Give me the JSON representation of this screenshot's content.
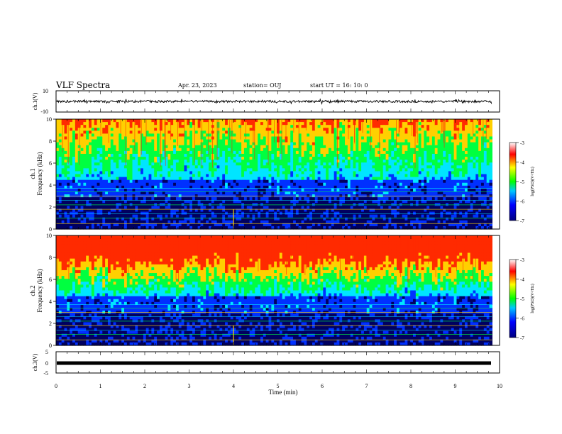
{
  "header": {
    "title": "VLF Spectra",
    "date": "Apr. 23, 2023",
    "station": "station= OUJ",
    "start": "start  UT  =    16: 10: 0"
  },
  "panels": {
    "ch1_wave": {
      "label": "ch.1(V)",
      "ticks": [
        "10",
        "-10"
      ]
    },
    "ch1_spec": {
      "label_line1": "ch.1",
      "label_line2": "Frequency  (kHz)"
    },
    "ch2_spec": {
      "label_line1": "ch.2",
      "label_line2": "Frequency  (kHz)"
    },
    "ch3_wave": {
      "label": "ch.3(V)",
      "ticks": [
        "5",
        "0",
        "-5"
      ]
    }
  },
  "colorbar": {
    "label": "log(PSD)(V²/Hz)",
    "ticks": [
      "-3",
      "-4",
      "-5",
      "-6",
      "-7"
    ]
  },
  "chart_data": [
    {
      "type": "line",
      "title": "VLF Spectra",
      "ylabel": "ch.1(V)",
      "ylim": [
        -10,
        10
      ],
      "xlim": [
        0,
        10
      ],
      "description_values": {
        "x": [
          0,
          9.83
        ],
        "y": [
          0,
          0
        ]
      }
    },
    {
      "type": "heatmap",
      "ylabel": "ch.1 Frequency (kHz)",
      "xlim": [
        0,
        10
      ],
      "ylim": [
        0,
        10
      ],
      "yticks": [
        "0",
        "2",
        "4",
        "6",
        "8",
        "10"
      ],
      "zlabel": "log(PSD)(V²/Hz)",
      "zlim": [
        -7,
        -3
      ],
      "data_end_min": 9.83,
      "event_min": 4.0
    },
    {
      "type": "heatmap",
      "ylabel": "ch.2 Frequency (kHz)",
      "xlim": [
        0,
        10
      ],
      "ylim": [
        0,
        10
      ],
      "yticks": [
        "0",
        "2",
        "4",
        "6",
        "8",
        "10"
      ],
      "zlabel": "log(PSD)(V²/Hz)",
      "zlim": [
        -7,
        -3
      ],
      "data_end_min": 9.83,
      "event_min": 4.0
    },
    {
      "type": "line",
      "ylabel": "ch.3(V)",
      "ylim": [
        -5,
        5
      ],
      "xlim": [
        0,
        10
      ],
      "xlabel": "Time  (min)",
      "xticks": [
        "0",
        "1",
        "2",
        "3",
        "4",
        "5",
        "6",
        "7",
        "8",
        "9",
        "10"
      ]
    }
  ],
  "colors": {
    "hot": "#ff2a00",
    "warm": "#ffd000",
    "mid": "#00ff40",
    "cool": "#00e5ff",
    "cold": "#0030ff",
    "floor": "#000060"
  }
}
